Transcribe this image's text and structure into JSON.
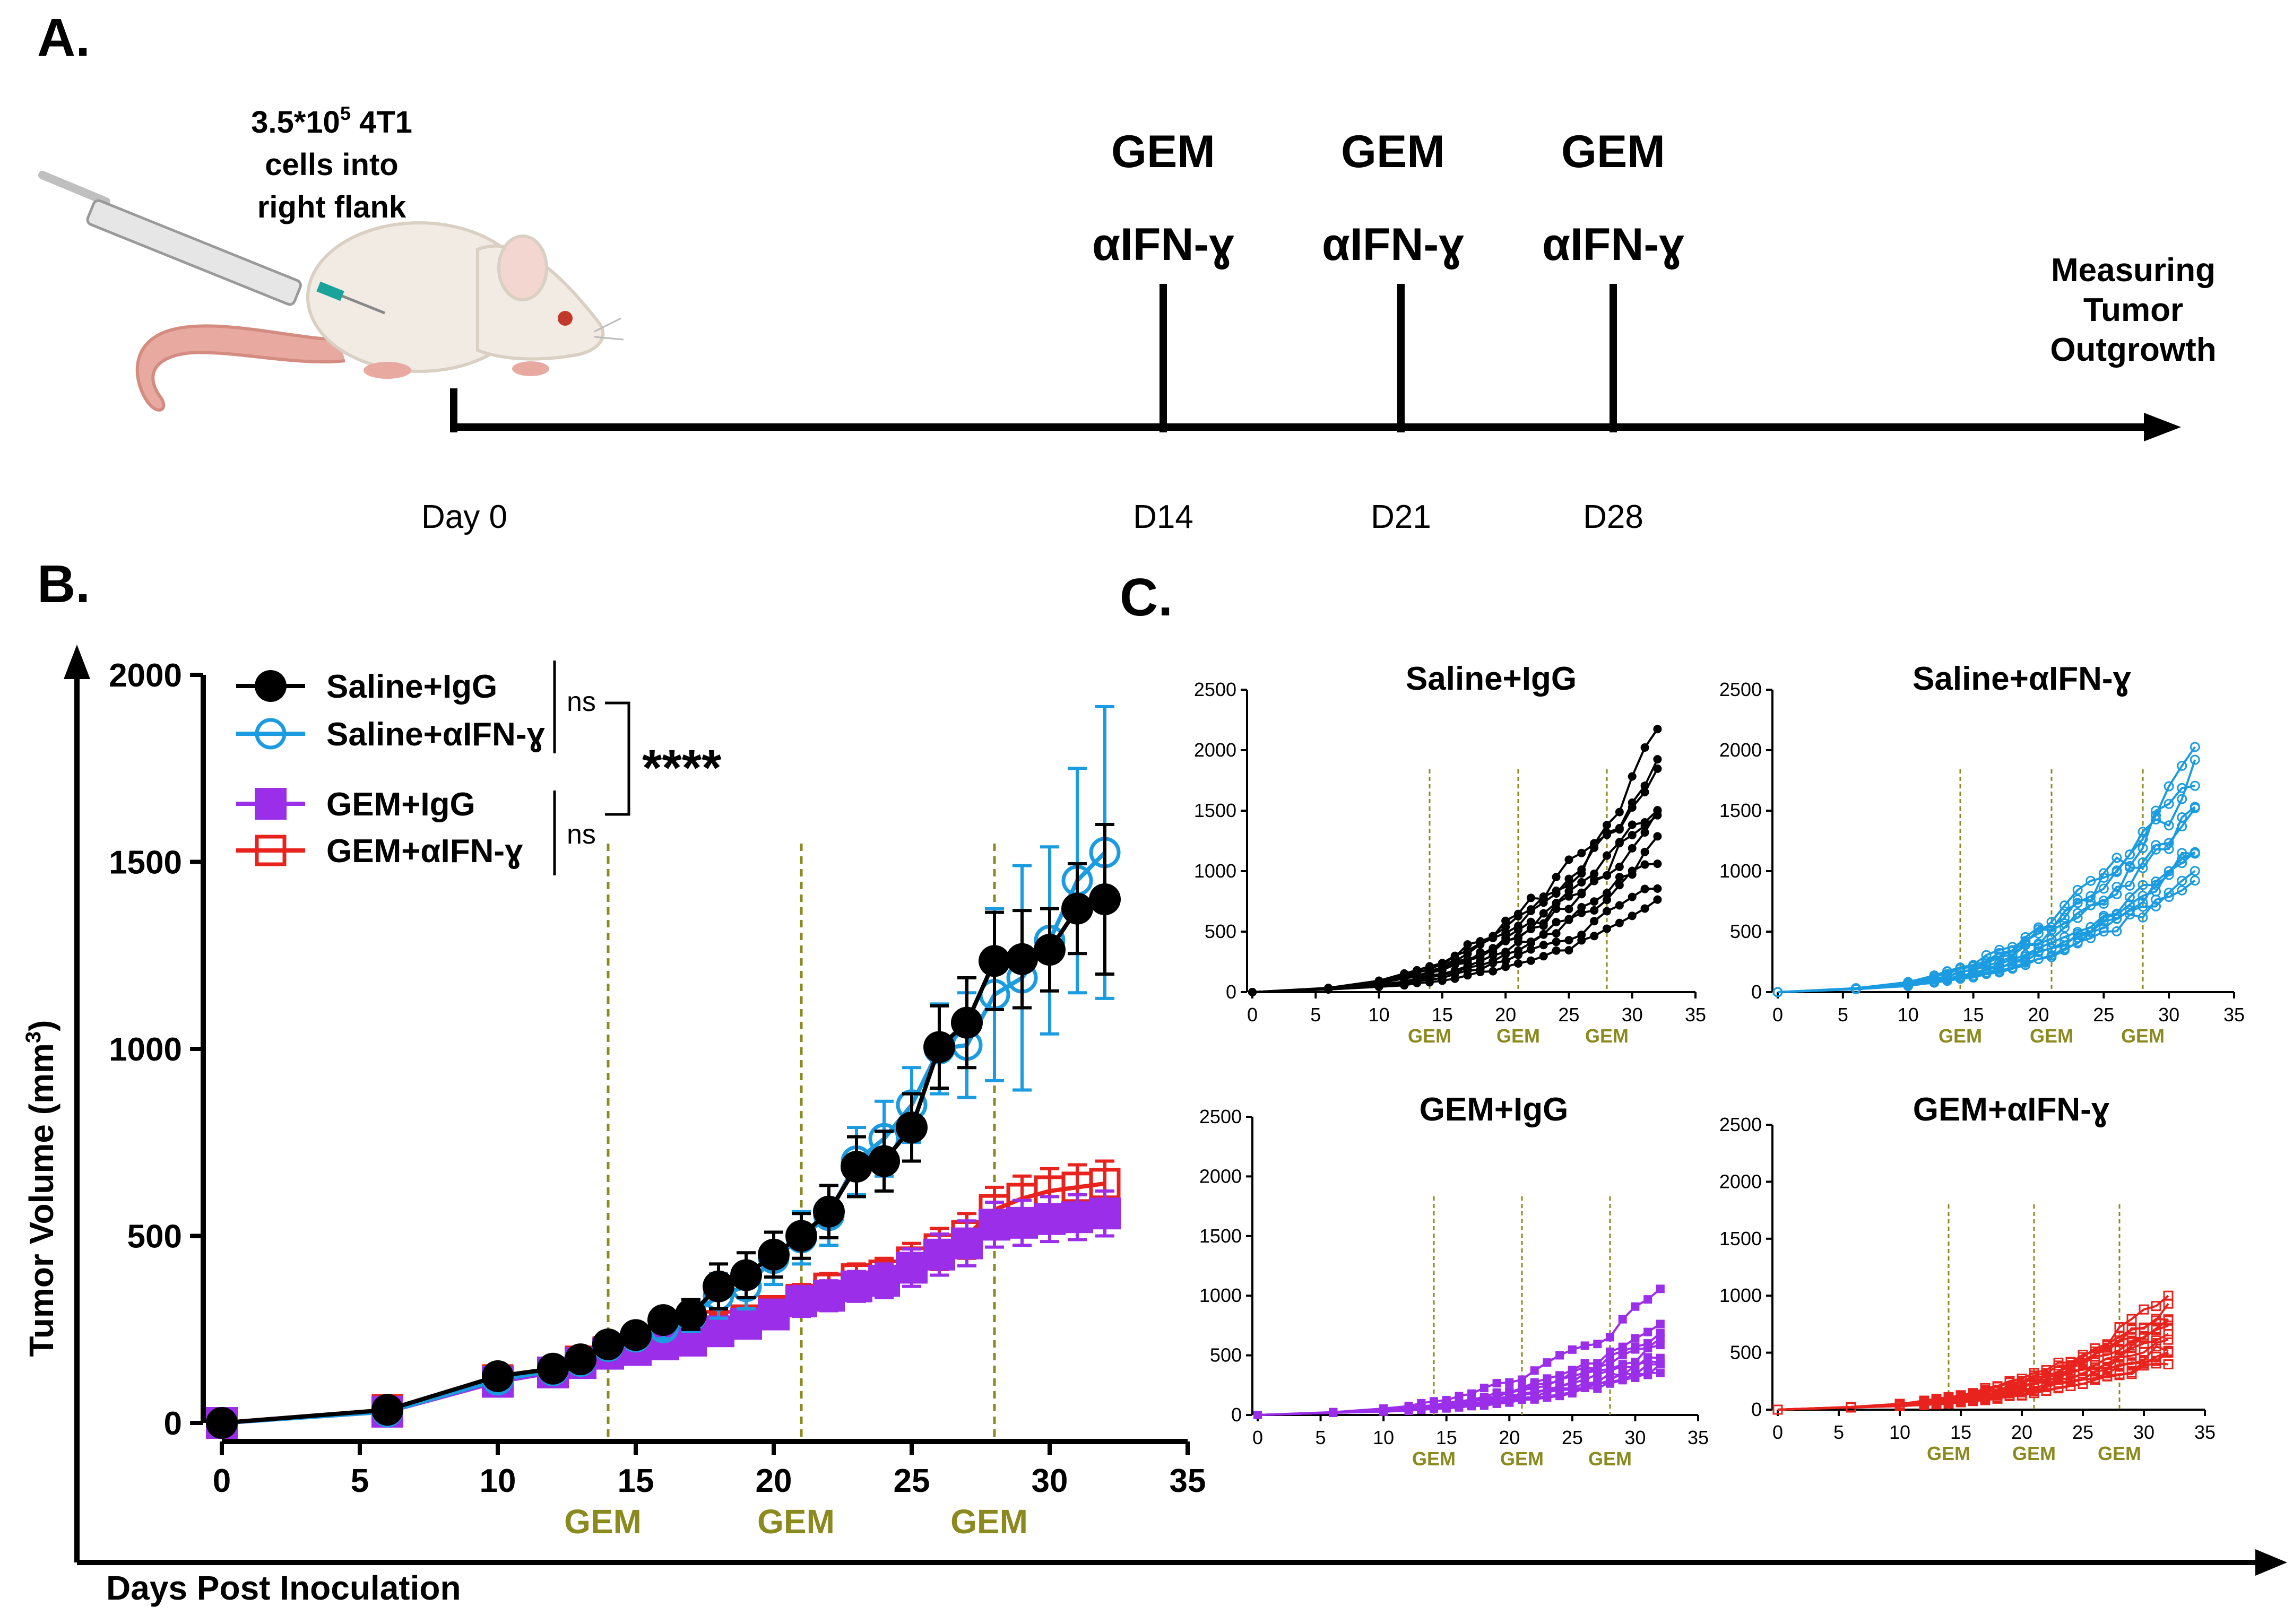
{
  "panel_labels": {
    "a": "A.",
    "b": "B.",
    "c": "C."
  },
  "schematic": {
    "injection": [
      "3.5*10",
      "5",
      " 4T1",
      "cells into",
      "right flank"
    ],
    "treatments": [
      {
        "drug": "GEM",
        "antibody": "αIFN-ɣ",
        "day": "D14"
      },
      {
        "drug": "GEM",
        "antibody": "αIFN-ɣ",
        "day": "D21"
      },
      {
        "drug": "GEM",
        "antibody": "αIFN-ɣ",
        "day": "D28"
      }
    ],
    "start": "Day 0",
    "endpoint": [
      "Measuring",
      "Tumor",
      "Outgrowth"
    ],
    "colors": {
      "mouse": "#f1ebe4",
      "tail": "#e8a9a0",
      "eye": "#c0392b",
      "needle": "#1aa39b"
    }
  },
  "chart_data": [
    {
      "panel": "B",
      "type": "line",
      "xlabel": "Days Post Inoculation",
      "ylabel": "Tumor Volume (mm",
      "ylabel_sup": "3",
      "ylabel_end": ")",
      "xlim": [
        0,
        35
      ],
      "ylim": [
        0,
        2000
      ],
      "xticks": [
        "0",
        "5",
        "10",
        "15",
        "20",
        "25",
        "30",
        "35"
      ],
      "yticks": [
        "0",
        "500",
        "1000",
        "1500",
        "2000"
      ],
      "treatment_days": [
        14,
        21,
        28
      ],
      "treatment_label": "GEM",
      "stats": {
        "ns1": "ns",
        "ns2": "ns",
        "sig": "****"
      },
      "x": [
        0,
        6,
        10,
        12,
        13,
        14,
        15,
        16,
        17,
        18,
        19,
        20,
        21,
        22,
        23,
        24,
        25,
        26,
        27,
        28,
        29,
        30,
        31,
        32
      ],
      "series": [
        {
          "name": "Saline+IgG",
          "color": "#000000",
          "marker": "filled-circle",
          "values": [
            0,
            35,
            125,
            145,
            170,
            210,
            235,
            275,
            290,
            365,
            395,
            450,
            500,
            565,
            685,
            700,
            790,
            1005,
            1070,
            1235,
            1240,
            1265,
            1375,
            1400
          ],
          "err": [
            5,
            10,
            25,
            25,
            25,
            30,
            30,
            30,
            40,
            60,
            60,
            60,
            60,
            70,
            80,
            80,
            90,
            110,
            120,
            130,
            130,
            110,
            120,
            200
          ]
        },
        {
          "name": "Saline+αIFN-ɣ",
          "color": "#1b9be0",
          "marker": "open-circle",
          "values": [
            0,
            30,
            115,
            140,
            165,
            205,
            230,
            255,
            285,
            340,
            365,
            440,
            495,
            555,
            700,
            760,
            850,
            1000,
            1010,
            1145,
            1190,
            1290,
            1450,
            1525
          ],
          "err": [
            5,
            10,
            20,
            25,
            25,
            30,
            30,
            30,
            40,
            60,
            60,
            70,
            70,
            80,
            90,
            100,
            100,
            120,
            140,
            230,
            300,
            250,
            300,
            390
          ]
        },
        {
          "name": "GEM+IgG",
          "color": "#9b2ee8",
          "marker": "filled-square",
          "values": [
            0,
            30,
            110,
            135,
            160,
            185,
            195,
            210,
            220,
            245,
            265,
            290,
            325,
            340,
            365,
            380,
            415,
            450,
            480,
            530,
            535,
            545,
            550,
            560
          ],
          "err": [
            5,
            10,
            20,
            20,
            20,
            25,
            25,
            25,
            30,
            30,
            30,
            35,
            40,
            40,
            40,
            45,
            50,
            55,
            60,
            60,
            60,
            60,
            60,
            60
          ]
        },
        {
          "name": "GEM+αIFN-ɣ",
          "color": "#e8231e",
          "marker": "open-square",
          "values": [
            0,
            35,
            115,
            135,
            165,
            190,
            200,
            220,
            240,
            260,
            275,
            300,
            330,
            360,
            385,
            395,
            430,
            465,
            500,
            570,
            600,
            620,
            630,
            640
          ],
          "err": [
            5,
            10,
            20,
            20,
            20,
            25,
            25,
            25,
            30,
            30,
            30,
            35,
            40,
            40,
            40,
            45,
            50,
            55,
            60,
            60,
            60,
            60,
            60,
            60
          ]
        }
      ]
    },
    {
      "panel": "C",
      "type": "line",
      "title": "Saline+IgG",
      "color": "#000000",
      "marker": "filled-circle",
      "xlim": [
        0,
        35
      ],
      "ylim": [
        0,
        2500
      ],
      "xticks": [
        "0",
        "5",
        "10",
        "15",
        "20",
        "25",
        "30",
        "35"
      ],
      "yticks": [
        "0",
        "500",
        "1000",
        "1500",
        "2000",
        "2500"
      ],
      "treatment_days": [
        14,
        21,
        28
      ],
      "treatment_label": "GEM",
      "x": [
        0,
        6,
        10,
        12,
        13,
        14,
        15,
        16,
        17,
        18,
        19,
        20,
        21,
        22,
        23,
        24,
        25,
        26,
        27,
        28,
        29,
        30,
        31,
        32
      ],
      "final_values": [
        2050,
        1850,
        1550,
        1450,
        1200,
        1100,
        900,
        700,
        1800,
        1500
      ]
    },
    {
      "panel": "C",
      "type": "line",
      "title": "Saline+αIFN-ɣ",
      "color": "#1b9be0",
      "marker": "open-circle",
      "xlim": [
        0,
        35
      ],
      "ylim": [
        0,
        2500
      ],
      "xticks": [
        "0",
        "5",
        "10",
        "15",
        "20",
        "25",
        "30",
        "35"
      ],
      "yticks": [
        "0",
        "500",
        "1000",
        "1500",
        "2000",
        "2500"
      ],
      "treatment_days": [
        14,
        21,
        28
      ],
      "treatment_label": "GEM",
      "x": [
        0,
        6,
        10,
        12,
        13,
        14,
        15,
        16,
        17,
        18,
        19,
        20,
        21,
        22,
        23,
        24,
        25,
        26,
        27,
        28,
        29,
        30,
        31,
        32
      ],
      "final_values": [
        1920,
        1800,
        1500,
        1200,
        1150,
        1100,
        950,
        1000,
        1500,
        1750
      ]
    },
    {
      "panel": "C",
      "type": "line",
      "title": "GEM+IgG",
      "color": "#9b2ee8",
      "marker": "filled-square",
      "xlim": [
        0,
        35
      ],
      "ylim": [
        0,
        2500
      ],
      "xticks": [
        "0",
        "5",
        "10",
        "15",
        "20",
        "25",
        "30",
        "35"
      ],
      "yticks": [
        "0",
        "500",
        "1000",
        "1500",
        "2000",
        "2500"
      ],
      "treatment_days": [
        14,
        21,
        28
      ],
      "treatment_label": "GEM",
      "x": [
        0,
        6,
        10,
        12,
        13,
        14,
        15,
        16,
        17,
        18,
        19,
        20,
        21,
        22,
        23,
        24,
        25,
        26,
        27,
        28,
        29,
        30,
        31,
        32
      ],
      "final_values": [
        1000,
        700,
        600,
        550,
        500,
        450,
        420,
        380,
        350,
        650
      ]
    },
    {
      "panel": "C",
      "type": "line",
      "title": "GEM+αIFN-ɣ",
      "color": "#e8231e",
      "marker": "open-square",
      "xlim": [
        0,
        35
      ],
      "ylim": [
        0,
        2500
      ],
      "xticks": [
        "0",
        "5",
        "10",
        "15",
        "20",
        "25",
        "30",
        "35"
      ],
      "yticks": [
        "0",
        "500",
        "1000",
        "1500",
        "2000",
        "2500"
      ],
      "treatment_days": [
        14,
        21,
        28
      ],
      "treatment_label": "GEM",
      "x": [
        0,
        6,
        10,
        12,
        13,
        14,
        15,
        16,
        17,
        18,
        19,
        20,
        21,
        22,
        23,
        24,
        25,
        26,
        27,
        28,
        29,
        30,
        31,
        32
      ],
      "final_values": [
        950,
        900,
        850,
        800,
        750,
        700,
        650,
        600,
        550,
        500,
        450,
        420
      ]
    }
  ]
}
